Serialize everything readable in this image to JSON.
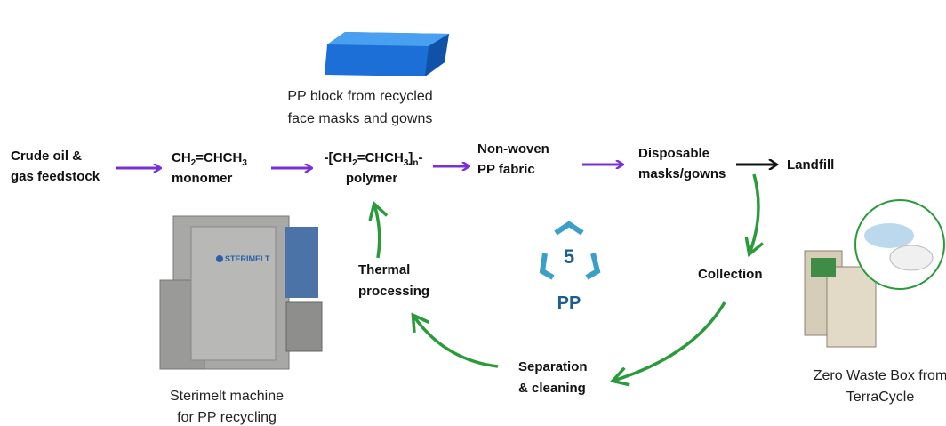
{
  "pp_block": {
    "caption": [
      "PP block from recycled",
      "face masks and gowns"
    ]
  },
  "flow": {
    "feedstock": [
      "Crude oil &",
      "gas feedstock"
    ],
    "monomer": {
      "formula": [
        "CH",
        "2",
        "=CHCH",
        "3"
      ],
      "label": "monomer"
    },
    "polymer": {
      "formula": [
        "-[CH",
        "2",
        "=CHCH",
        "3",
        "]",
        "n",
        "-"
      ],
      "label": "polymer"
    },
    "fabric": [
      "Non-woven",
      "PP fabric"
    ],
    "disposable": [
      "Disposable",
      "masks/gowns"
    ],
    "landfill": "Landfill"
  },
  "cycle": {
    "collection": "Collection",
    "separation": [
      "Separation",
      "& cleaning"
    ],
    "thermal": [
      "Thermal",
      "processing"
    ],
    "recycle_code": "5",
    "recycle_label": "PP"
  },
  "machine": {
    "brand": "STERIMELT",
    "caption": [
      "Sterimelt machine",
      "for PP recycling"
    ]
  },
  "box": {
    "caption": [
      "Zero Waste Box from",
      "TerraCycle"
    ]
  }
}
